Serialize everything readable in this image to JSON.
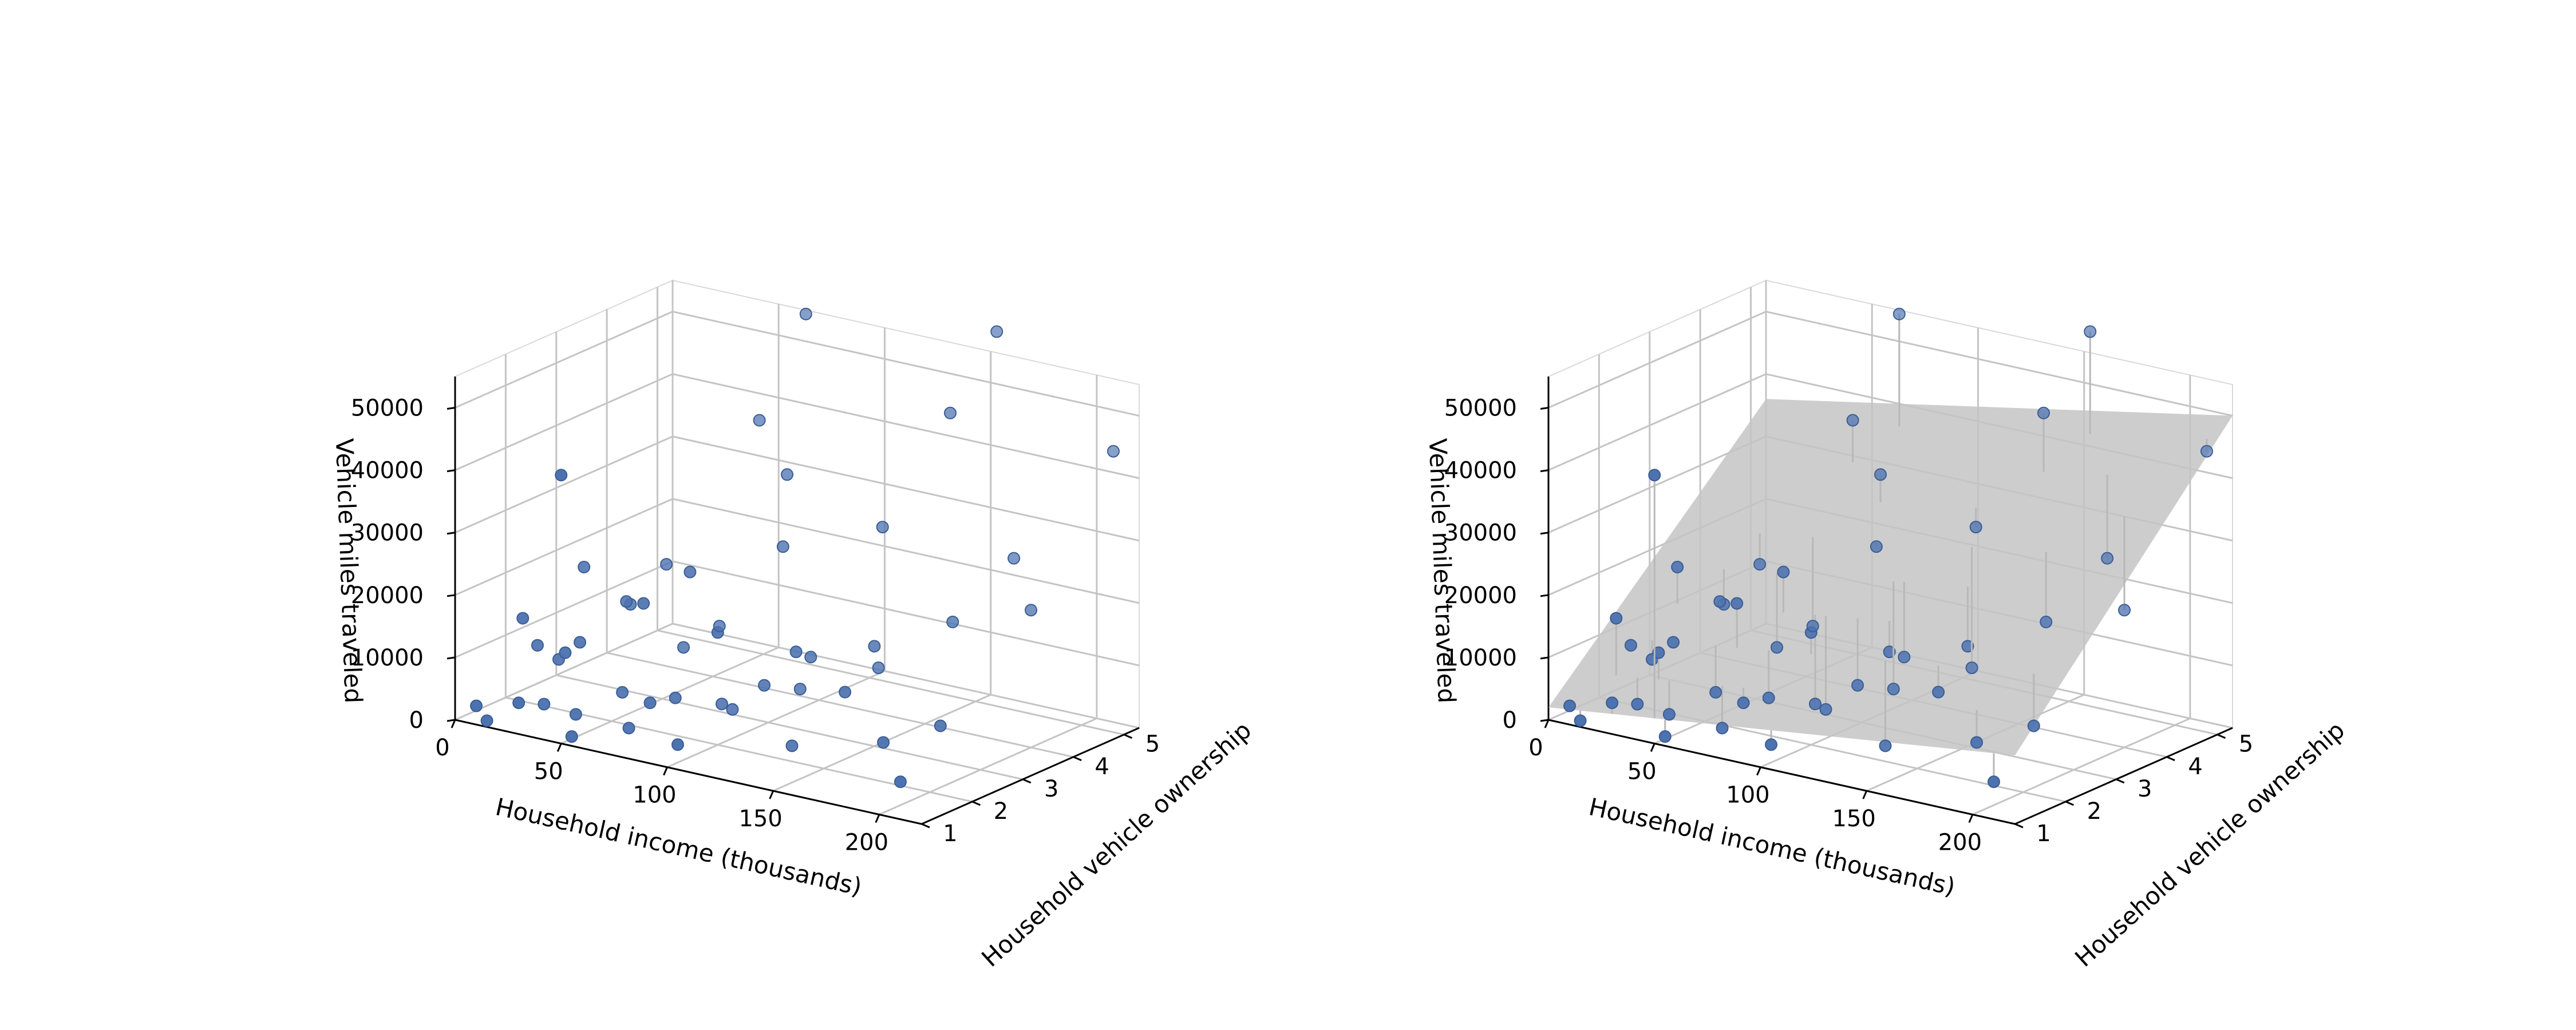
{
  "colors": {
    "point": "#4c72b0",
    "point_edge": "#3b5d94",
    "grid": "#c4c4c4",
    "pane_edge": "#d9d9d9",
    "plane": "#c4c4c4",
    "residual": "#b8b8b8"
  },
  "chart_data": [
    {
      "type": "scatter3d",
      "xlabel": "Household income (thousands)",
      "ylabel": "Household vehicle ownership",
      "zlabel": "Vehicle miles traveled",
      "xticks": [
        "0",
        "50",
        "100",
        "150",
        "200"
      ],
      "yticks": [
        "1",
        "2",
        "3",
        "4",
        "5"
      ],
      "zticks": [
        "0",
        "10000",
        "20000",
        "30000",
        "40000",
        "50000"
      ],
      "xlim": [
        0,
        220
      ],
      "ylim": [
        1,
        5.3
      ],
      "zlim": [
        0,
        55000
      ],
      "grid": true,
      "view": "elevated, low-income corner in front",
      "show_plane": false,
      "show_residuals": false,
      "series": [
        {
          "marker": "circle",
          "points": [
            [
              30,
              1.5,
              3000
            ],
            [
              45,
              1.5,
              2500
            ],
            [
              70,
              1.5,
              2200
            ],
            [
              55,
              2.0,
              5000
            ],
            [
              80,
              2.0,
              6000
            ],
            [
              25,
              2.0,
              8000
            ],
            [
              15,
              1.0,
              1000
            ],
            [
              90,
              2.5,
              4000
            ],
            [
              110,
              2.5,
              8500
            ],
            [
              120,
              3.0,
              12000
            ],
            [
              60,
              3.0,
              9000
            ],
            [
              35,
              3.0,
              14000
            ],
            [
              150,
              3.0,
              16000
            ],
            [
              175,
              3.5,
              20000
            ],
            [
              200,
              4.0,
              22000
            ],
            [
              130,
              4.0,
              30000
            ],
            [
              95,
              3.5,
              26000
            ],
            [
              85,
              4.0,
              35000
            ],
            [
              60,
              4.5,
              40000
            ],
            [
              150,
              4.5,
              48000
            ],
            [
              210,
              1.0,
              6000
            ],
            [
              190,
              1.5,
              9000
            ],
            [
              205,
              2.0,
              11000
            ],
            [
              160,
              2.0,
              13000
            ],
            [
              100,
              2.0,
              18000
            ],
            [
              40,
              1.5,
              12000
            ],
            [
              20,
              1.5,
              16000
            ],
            [
              10,
              1.0,
              3000
            ],
            [
              65,
              2.0,
              20000
            ],
            [
              75,
              2.5,
              24000
            ],
            [
              45,
              2.5,
              17000
            ],
            [
              140,
              3.5,
              10000
            ],
            [
              125,
              2.5,
              15000
            ],
            [
              180,
              4.5,
              27000
            ],
            [
              215,
              5.0,
              45000
            ],
            [
              50,
              1.0,
              43000
            ],
            [
              70,
              5.0,
              56000
            ],
            [
              160,
              5.0,
              60000
            ],
            [
              30,
              1.0,
              5000
            ],
            [
              55,
              1.0,
              1500
            ],
            [
              80,
              1.5,
              7000
            ],
            [
              105,
              1.0,
              4000
            ],
            [
              95,
              2.5,
              3500
            ],
            [
              115,
              3.0,
              6500
            ],
            [
              135,
              2.0,
              2500
            ],
            [
              65,
              3.5,
              11000
            ],
            [
              40,
              3.5,
              19000
            ],
            [
              25,
              2.5,
              21000
            ],
            [
              15,
              2.0,
              9500
            ],
            [
              35,
              2.0,
              11500
            ]
          ]
        }
      ]
    },
    {
      "type": "scatter3d",
      "xlabel": "Household income (thousands)",
      "ylabel": "Household vehicle ownership",
      "zlabel": "Vehicle miles traveled",
      "xticks": [
        "0",
        "50",
        "100",
        "150",
        "200"
      ],
      "yticks": [
        "1",
        "2",
        "3",
        "4",
        "5"
      ],
      "zticks": [
        "0",
        "10000",
        "20000",
        "30000",
        "40000",
        "50000"
      ],
      "xlim": [
        0,
        220
      ],
      "ylim": [
        1,
        5.3
      ],
      "zlim": [
        0,
        55000
      ],
      "grid": true,
      "view": "elevated, low-income corner in front",
      "show_plane": true,
      "show_residuals": true,
      "plane": {
        "corners": [
          [
            0,
            1,
            2000
          ],
          [
            220,
            1,
            11000
          ],
          [
            220,
            5.3,
            50000
          ],
          [
            0,
            5.3,
            36000
          ]
        ]
      },
      "series": [
        {
          "marker": "circle",
          "points": [
            [
              30,
              1.5,
              3000
            ],
            [
              45,
              1.5,
              2500
            ],
            [
              70,
              1.5,
              2200
            ],
            [
              55,
              2.0,
              5000
            ],
            [
              80,
              2.0,
              6000
            ],
            [
              25,
              2.0,
              8000
            ],
            [
              15,
              1.0,
              1000
            ],
            [
              90,
              2.5,
              4000
            ],
            [
              110,
              2.5,
              8500
            ],
            [
              120,
              3.0,
              12000
            ],
            [
              60,
              3.0,
              9000
            ],
            [
              35,
              3.0,
              14000
            ],
            [
              150,
              3.0,
              16000
            ],
            [
              175,
              3.5,
              20000
            ],
            [
              200,
              4.0,
              22000
            ],
            [
              130,
              4.0,
              30000
            ],
            [
              95,
              3.5,
              26000
            ],
            [
              85,
              4.0,
              35000
            ],
            [
              60,
              4.5,
              40000
            ],
            [
              150,
              4.5,
              48000
            ],
            [
              210,
              1.0,
              6000
            ],
            [
              190,
              1.5,
              9000
            ],
            [
              205,
              2.0,
              11000
            ],
            [
              160,
              2.0,
              13000
            ],
            [
              100,
              2.0,
              18000
            ],
            [
              40,
              1.5,
              12000
            ],
            [
              20,
              1.5,
              16000
            ],
            [
              10,
              1.0,
              3000
            ],
            [
              65,
              2.0,
              20000
            ],
            [
              75,
              2.5,
              24000
            ],
            [
              45,
              2.5,
              17000
            ],
            [
              140,
              3.5,
              10000
            ],
            [
              125,
              2.5,
              15000
            ],
            [
              180,
              4.5,
              27000
            ],
            [
              215,
              5.0,
              45000
            ],
            [
              50,
              1.0,
              43000
            ],
            [
              70,
              5.0,
              56000
            ],
            [
              160,
              5.0,
              60000
            ],
            [
              30,
              1.0,
              5000
            ],
            [
              55,
              1.0,
              1500
            ],
            [
              80,
              1.5,
              7000
            ],
            [
              105,
              1.0,
              4000
            ],
            [
              95,
              2.5,
              3500
            ],
            [
              115,
              3.0,
              6500
            ],
            [
              135,
              2.0,
              2500
            ],
            [
              65,
              3.5,
              11000
            ],
            [
              40,
              3.5,
              19000
            ],
            [
              25,
              2.5,
              21000
            ],
            [
              15,
              2.0,
              9500
            ],
            [
              35,
              2.0,
              11500
            ]
          ]
        }
      ]
    }
  ]
}
